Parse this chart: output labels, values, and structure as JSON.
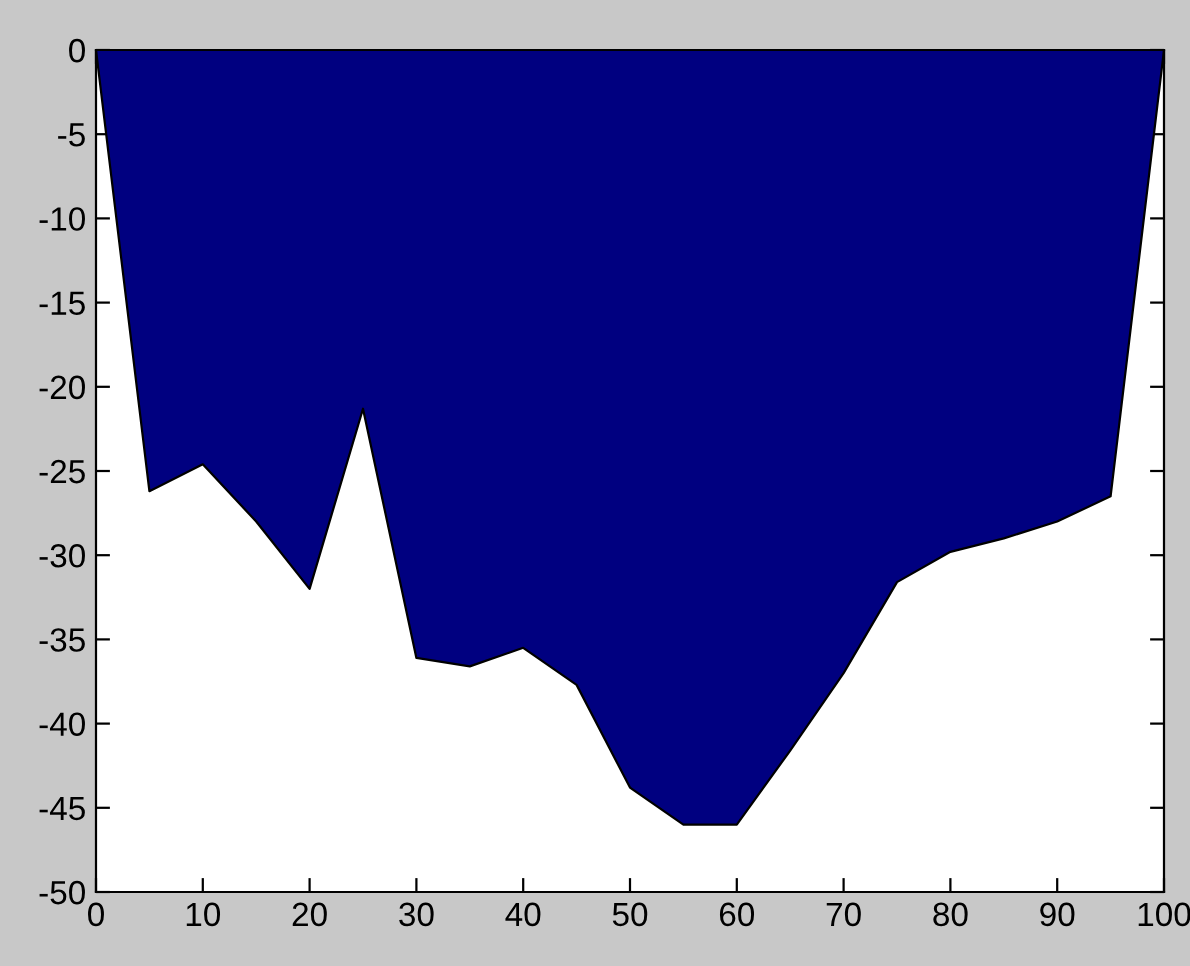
{
  "chart_data": {
    "type": "area",
    "x": [
      0,
      5,
      10,
      15,
      20,
      25,
      30,
      35,
      40,
      45,
      50,
      55,
      60,
      65,
      70,
      75,
      80,
      85,
      90,
      95,
      100
    ],
    "series": [
      {
        "color": "#000080",
        "values": [
          0,
          -26.2,
          -24.6,
          -28,
          -32,
          -21.3,
          -36.1,
          -36.6,
          -35.5,
          -37.7,
          -43.8,
          -46,
          -46,
          -41.6,
          -37,
          -31.6,
          -29.8,
          -29,
          -28,
          -26.5,
          0
        ]
      }
    ],
    "xlim": [
      0,
      100
    ],
    "xticks": [
      0,
      10,
      20,
      30,
      40,
      50,
      60,
      70,
      80,
      90,
      100
    ],
    "ylim": [
      -50,
      0
    ],
    "yticks": [
      -50,
      -45,
      -40,
      -35,
      -30,
      -25,
      -20,
      -15,
      -10,
      -5,
      0
    ],
    "grid": false,
    "legend": false
  }
}
